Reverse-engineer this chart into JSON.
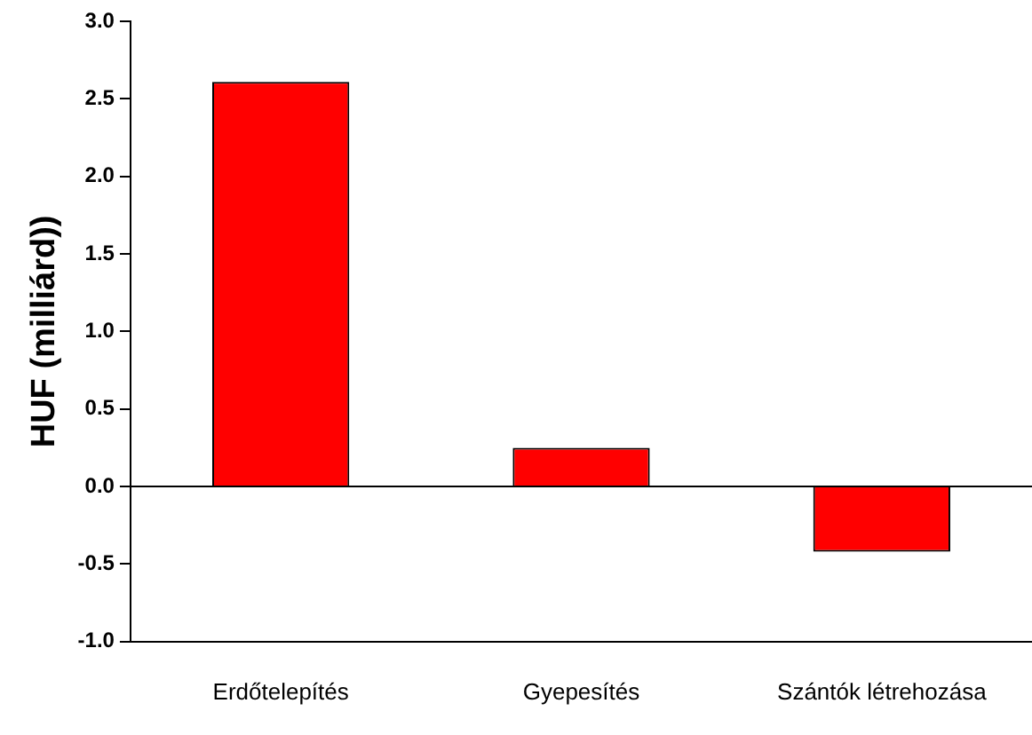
{
  "chart_data": {
    "type": "bar",
    "ylabel": "HUF (milliárd))",
    "categories": [
      "Erdőtelepítés",
      "Gyepesítés",
      "Szántók létrehozása"
    ],
    "values": [
      2.61,
      0.25,
      -0.42
    ],
    "color": "#ff0000",
    "ylim": [
      -1,
      3
    ],
    "yticks": [
      {
        "value": -1,
        "label": "-1.0"
      },
      {
        "value": -0.5,
        "label": "-0.5"
      },
      {
        "value": 0,
        "label": "0.0"
      },
      {
        "value": 0.5,
        "label": "0.5"
      },
      {
        "value": 1,
        "label": "1.0"
      },
      {
        "value": 1.5,
        "label": "1.5"
      },
      {
        "value": 2,
        "label": "2.0"
      },
      {
        "value": 2.5,
        "label": "2.5"
      },
      {
        "value": 3,
        "label": "3.0"
      }
    ],
    "grid": false,
    "legend": false,
    "ref_lines": [
      {
        "axis": "y",
        "value": 0,
        "color": "#000000"
      }
    ]
  }
}
